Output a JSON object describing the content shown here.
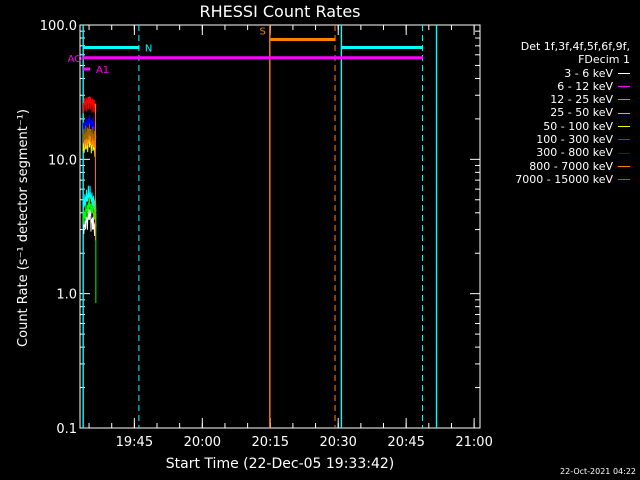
{
  "chart_data": {
    "type": "line",
    "title": "RHESSI Count Rates",
    "xlabel": "Start Time (22-Dec-05 19:33:42)",
    "ylabel": "Count Rate (s⁻¹ detector segment⁻¹)",
    "y_scale": "log",
    "ylim": [
      0.1,
      100.0
    ],
    "y_ticks": [
      0.1,
      1.0,
      10.0,
      100.0
    ],
    "y_tick_labels": [
      "0.1",
      "1.0",
      "10.0",
      "100.0"
    ],
    "x_range_minutes_from_start": [
      -0.7,
      87.6
    ],
    "x_ticks": [
      {
        "label": "19:45",
        "minute": 11.3
      },
      {
        "label": "20:00",
        "minute": 26.3
      },
      {
        "label": "20:15",
        "minute": 41.3
      },
      {
        "label": "20:30",
        "minute": 56.3
      },
      {
        "label": "20:45",
        "minute": 71.3
      },
      {
        "label": "21:00",
        "minute": 86.3
      }
    ],
    "series": [
      {
        "name": "3 - 6 keV",
        "color": "#ffffff",
        "x_range": [
          0.0,
          2.8
        ],
        "values": [
          3.2,
          3.5,
          3.9,
          3.4,
          3.1
        ]
      },
      {
        "name": "6 - 12 keV",
        "color": "#ff00ff",
        "x_range": [
          0.0,
          2.8
        ],
        "values": []
      },
      {
        "name": "12 - 25 keV",
        "color": "#00ff00",
        "x_range": [
          0.0,
          2.8
        ],
        "values": [
          3.8,
          4.2,
          4.6,
          4.3,
          3.9
        ]
      },
      {
        "name": "25 - 50 keV",
        "color": "#00ffff",
        "x_range": [
          0.0,
          2.8
        ],
        "values": [
          4.8,
          5.3,
          5.6,
          5.1,
          4.7
        ]
      },
      {
        "name": "50 - 100 keV",
        "color": "#ffff00",
        "x_range": [
          0.0,
          2.8
        ],
        "values": [
          12.5,
          13.0,
          13.4,
          12.9,
          12.2
        ]
      },
      {
        "name": "100 - 300 keV",
        "color": "#ff0000",
        "x_range": [
          0.0,
          2.8
        ],
        "values": [
          25.5,
          26.5,
          27.0,
          26.0,
          25.0
        ]
      },
      {
        "name": "300 - 800 keV",
        "color": "#0000ff",
        "x_range": [
          0.0,
          2.8
        ],
        "values": [
          17.5,
          18.5,
          19.0,
          18.2,
          17.4
        ]
      },
      {
        "name": "800 - 7000 keV",
        "color": "#ff8000",
        "x_range": [
          0.0,
          2.8
        ],
        "values": [
          13.5,
          14.2,
          14.8,
          14.0,
          13.2
        ]
      },
      {
        "name": "7000 - 15000 keV",
        "color": "#996600",
        "x_range": [
          0.0,
          2.8
        ],
        "values": [
          15.0,
          15.6,
          16.0,
          15.4,
          14.8
        ]
      }
    ],
    "annotations": [
      {
        "label": "N",
        "color": "#00ffff",
        "x_start": 0.0,
        "x_end": 12.3,
        "y": 68.0
      },
      {
        "label": "AO",
        "color": "#ff00ff",
        "x_start": 0.0,
        "x_end": 75.0,
        "y": 57.0
      },
      {
        "label": "A1",
        "color": "#ff00ff",
        "x_start": 0.0,
        "x_end": 1.5,
        "y": 47.0
      },
      {
        "label": "S",
        "color": "#ff8000",
        "x_start": 41.2,
        "x_end": 55.6,
        "y": 78.0
      }
    ],
    "orange_end_marker": 78.0,
    "cyan_solid_vlines": [
      0.0,
      57.0
    ],
    "cyan_dashed_vlines": [
      12.3,
      74.9
    ],
    "orange_solid_vlines": [
      41.2
    ],
    "orange_dashed_vlines": [
      55.6
    ],
    "cyan_segment_after": {
      "x_start": 57.0,
      "x_end": 75.0,
      "y": 68.0
    },
    "legend_header": [
      "Det 1f,3f,4f,5f,6f,9f,",
      "FDecim 1"
    ],
    "legend_position": "right",
    "grid": false
  },
  "timestamp": "22-Oct-2021 04:22"
}
